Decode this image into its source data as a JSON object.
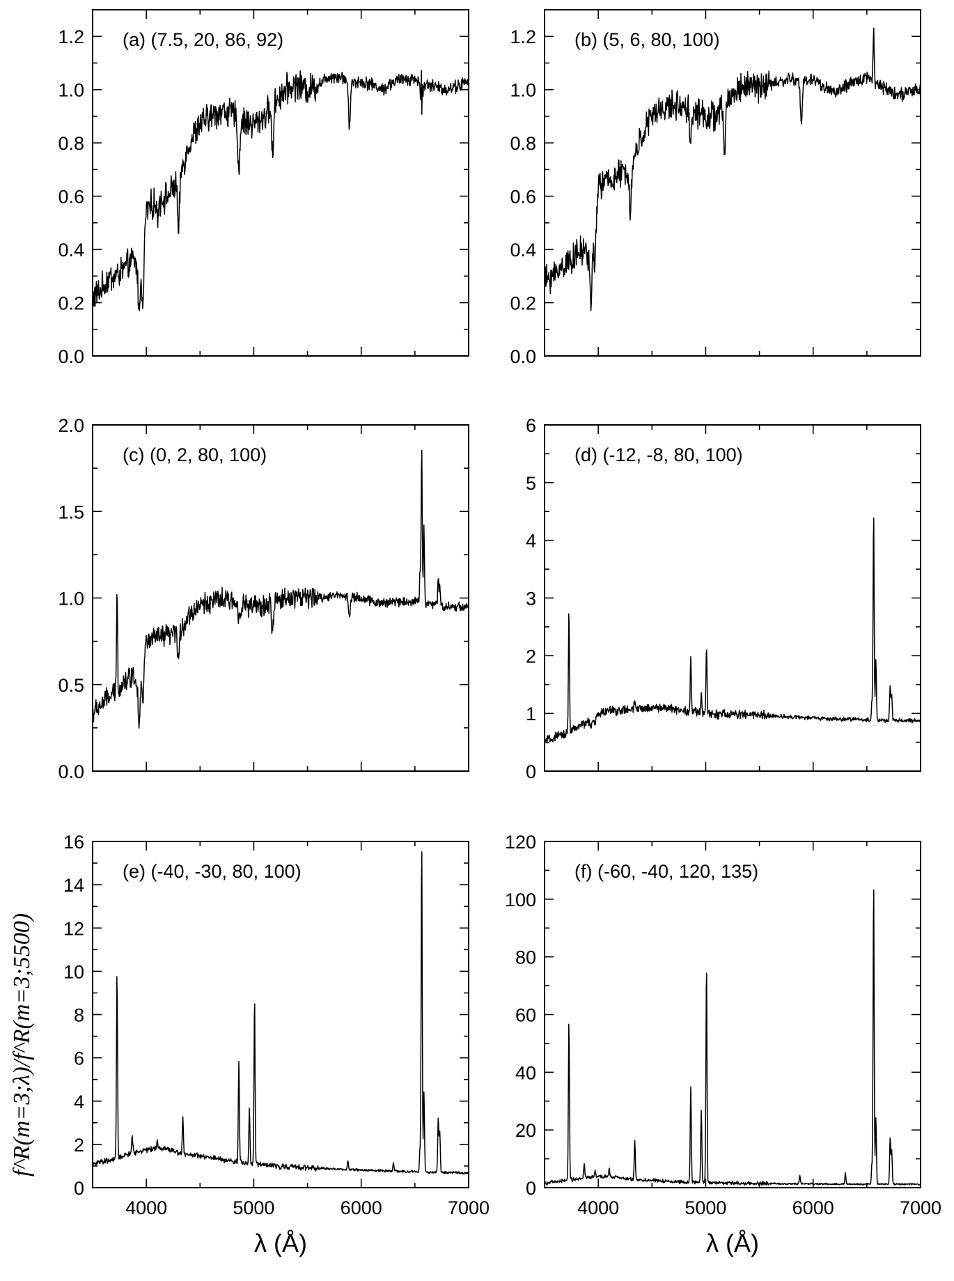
{
  "figure": {
    "xlabel": "λ (Å)",
    "ylabel": "f^R(m=3;λ)/f^R(m=3;5500)",
    "line_color": "#000000",
    "background": "#ffffff"
  },
  "chart_data": [
    {
      "id": "a",
      "type": "line",
      "label": "(a) (7.5, 20, 86, 92)",
      "xlim": [
        3500,
        7000
      ],
      "ylim": [
        0.0,
        1.3
      ],
      "xticks": [
        4000,
        5000,
        6000,
        7000
      ],
      "xticklabels": [
        "",
        "",
        "",
        ""
      ],
      "yticks": [
        0.0,
        0.2,
        0.4,
        0.6,
        0.8,
        1.0,
        1.2
      ],
      "yticklabels": [
        "0.0",
        "0.2",
        "0.4",
        "0.6",
        "0.8",
        "1.0",
        "1.2"
      ],
      "xlabel": "",
      "continuum": [
        [
          3500,
          0.22
        ],
        [
          3560,
          0.24
        ],
        [
          3650,
          0.29
        ],
        [
          3720,
          0.3
        ],
        [
          3800,
          0.33
        ],
        [
          3880,
          0.36
        ],
        [
          3920,
          0.33
        ],
        [
          3970,
          0.4
        ],
        [
          4000,
          0.55
        ],
        [
          4100,
          0.58
        ],
        [
          4200,
          0.6
        ],
        [
          4300,
          0.66
        ],
        [
          4400,
          0.8
        ],
        [
          4500,
          0.87
        ],
        [
          4600,
          0.9
        ],
        [
          4700,
          0.92
        ],
        [
          4800,
          0.91
        ],
        [
          4900,
          0.88
        ],
        [
          5000,
          0.87
        ],
        [
          5100,
          0.9
        ],
        [
          5200,
          0.96
        ],
        [
          5300,
          1.0
        ],
        [
          5400,
          1.02
        ],
        [
          5500,
          1.0
        ],
        [
          5600,
          1.02
        ],
        [
          5700,
          1.05
        ],
        [
          5800,
          1.05
        ],
        [
          5900,
          1.03
        ],
        [
          6000,
          1.03
        ],
        [
          6100,
          1.02
        ],
        [
          6200,
          1.0
        ],
        [
          6300,
          1.03
        ],
        [
          6400,
          1.04
        ],
        [
          6500,
          1.04
        ],
        [
          6600,
          1.02
        ],
        [
          6800,
          1.0
        ],
        [
          7000,
          1.03
        ]
      ],
      "noise_amp": 0.035,
      "lines": [
        [
          3934,
          -0.18
        ],
        [
          3968,
          -0.22
        ],
        [
          4102,
          -0.06
        ],
        [
          4300,
          -0.2
        ],
        [
          4861,
          -0.2
        ],
        [
          5175,
          -0.2
        ],
        [
          5890,
          -0.17
        ],
        [
          6563,
          0.16
        ],
        [
          6563,
          -0.12
        ]
      ]
    },
    {
      "id": "b",
      "type": "line",
      "label": "(b) (5, 6, 80, 100)",
      "xlim": [
        3500,
        7000
      ],
      "ylim": [
        0.0,
        1.3
      ],
      "xticks": [
        4000,
        5000,
        6000,
        7000
      ],
      "xticklabels": [
        "",
        "",
        "",
        ""
      ],
      "yticks": [
        0.0,
        0.2,
        0.4,
        0.6,
        0.8,
        1.0,
        1.2
      ],
      "yticklabels": [
        "0.0",
        "0.2",
        "0.4",
        "0.6",
        "0.8",
        "1.0",
        "1.2"
      ],
      "xlabel": "",
      "continuum": [
        [
          3500,
          0.28
        ],
        [
          3600,
          0.31
        ],
        [
          3700,
          0.35
        ],
        [
          3800,
          0.38
        ],
        [
          3880,
          0.4
        ],
        [
          3920,
          0.36
        ],
        [
          3970,
          0.5
        ],
        [
          4000,
          0.64
        ],
        [
          4100,
          0.66
        ],
        [
          4200,
          0.68
        ],
        [
          4300,
          0.7
        ],
        [
          4400,
          0.82
        ],
        [
          4500,
          0.9
        ],
        [
          4600,
          0.93
        ],
        [
          4700,
          0.94
        ],
        [
          4800,
          0.94
        ],
        [
          4900,
          0.92
        ],
        [
          5000,
          0.9
        ],
        [
          5100,
          0.9
        ],
        [
          5200,
          0.96
        ],
        [
          5300,
          1.0
        ],
        [
          5400,
          1.02
        ],
        [
          5500,
          1.01
        ],
        [
          5600,
          1.02
        ],
        [
          5700,
          1.03
        ],
        [
          5800,
          1.04
        ],
        [
          5900,
          1.03
        ],
        [
          6000,
          1.04
        ],
        [
          6100,
          1.01
        ],
        [
          6200,
          0.99
        ],
        [
          6300,
          1.01
        ],
        [
          6400,
          1.03
        ],
        [
          6500,
          1.05
        ],
        [
          6600,
          1.02
        ],
        [
          6800,
          0.98
        ],
        [
          7000,
          1.0
        ]
      ],
      "noise_amp": 0.035,
      "lines": [
        [
          3934,
          -0.2
        ],
        [
          3968,
          -0.18
        ],
        [
          4300,
          -0.16
        ],
        [
          4861,
          -0.13
        ],
        [
          5175,
          -0.18
        ],
        [
          5890,
          -0.16
        ],
        [
          6563,
          0.2
        ]
      ]
    },
    {
      "id": "c",
      "type": "line",
      "label": "(c) (0, 2, 80, 100)",
      "xlim": [
        3500,
        7000
      ],
      "ylim": [
        0.0,
        2.0
      ],
      "xticks": [
        4000,
        5000,
        6000,
        7000
      ],
      "xticklabels": [
        "",
        "",
        "",
        ""
      ],
      "yticks": [
        0.0,
        0.5,
        1.0,
        1.5,
        2.0
      ],
      "yticklabels": [
        "0.0",
        "0.5",
        "1.0",
        "1.5",
        "2.0"
      ],
      "xlabel": "",
      "continuum": [
        [
          3500,
          0.33
        ],
        [
          3600,
          0.4
        ],
        [
          3700,
          0.45
        ],
        [
          3800,
          0.52
        ],
        [
          3880,
          0.56
        ],
        [
          3920,
          0.5
        ],
        [
          3970,
          0.65
        ],
        [
          4000,
          0.75
        ],
        [
          4100,
          0.77
        ],
        [
          4200,
          0.78
        ],
        [
          4300,
          0.8
        ],
        [
          4400,
          0.9
        ],
        [
          4500,
          0.96
        ],
        [
          4600,
          0.98
        ],
        [
          4700,
          0.99
        ],
        [
          4800,
          0.98
        ],
        [
          4900,
          0.96
        ],
        [
          5000,
          0.95
        ],
        [
          5100,
          0.95
        ],
        [
          5200,
          0.98
        ],
        [
          5300,
          1.0
        ],
        [
          5400,
          1.01
        ],
        [
          5500,
          1.0
        ],
        [
          5600,
          1.0
        ],
        [
          5700,
          1.01
        ],
        [
          5800,
          1.02
        ],
        [
          5900,
          1.01
        ],
        [
          6000,
          1.0
        ],
        [
          6100,
          0.98
        ],
        [
          6200,
          0.97
        ],
        [
          6300,
          0.98
        ],
        [
          6400,
          0.98
        ],
        [
          6500,
          0.98
        ],
        [
          6600,
          0.97
        ],
        [
          6800,
          0.95
        ],
        [
          7000,
          0.95
        ]
      ],
      "noise_amp": 0.04,
      "lines": [
        [
          3727,
          0.55
        ],
        [
          3934,
          -0.25
        ],
        [
          3968,
          -0.25
        ],
        [
          4300,
          -0.15
        ],
        [
          4861,
          -0.06
        ],
        [
          5175,
          -0.16
        ],
        [
          5890,
          -0.12
        ],
        [
          6548,
          0.18
        ],
        [
          6563,
          0.88
        ],
        [
          6584,
          0.45
        ],
        [
          6717,
          0.15
        ],
        [
          6731,
          0.12
        ]
      ]
    },
    {
      "id": "d",
      "type": "line",
      "label": "(d) (-12, -8, 80, 100)",
      "xlim": [
        3500,
        7000
      ],
      "ylim": [
        0,
        6
      ],
      "xticks": [
        4000,
        5000,
        6000,
        7000
      ],
      "xticklabels": [
        "",
        "",
        "",
        ""
      ],
      "yticks": [
        0,
        1,
        2,
        3,
        4,
        5,
        6
      ],
      "yticklabels": [
        "0",
        "1",
        "2",
        "3",
        "4",
        "5",
        "6"
      ],
      "xlabel": "",
      "continuum": [
        [
          3500,
          0.52
        ],
        [
          3600,
          0.58
        ],
        [
          3700,
          0.65
        ],
        [
          3800,
          0.75
        ],
        [
          3900,
          0.85
        ],
        [
          4000,
          1.0
        ],
        [
          4100,
          1.05
        ],
        [
          4200,
          1.05
        ],
        [
          4300,
          1.06
        ],
        [
          4400,
          1.08
        ],
        [
          4500,
          1.1
        ],
        [
          4600,
          1.1
        ],
        [
          4700,
          1.08
        ],
        [
          4800,
          1.05
        ],
        [
          4900,
          1.02
        ],
        [
          5000,
          1.0
        ],
        [
          5200,
          0.98
        ],
        [
          5400,
          0.98
        ],
        [
          5600,
          0.96
        ],
        [
          5800,
          0.94
        ],
        [
          6000,
          0.92
        ],
        [
          6200,
          0.9
        ],
        [
          6400,
          0.9
        ],
        [
          6600,
          0.88
        ],
        [
          7000,
          0.87
        ]
      ],
      "noise_amp": 0.05,
      "lines": [
        [
          3727,
          2.05
        ],
        [
          3934,
          -0.15
        ],
        [
          3968,
          -0.15
        ],
        [
          4340,
          0.15
        ],
        [
          4861,
          0.95
        ],
        [
          4959,
          0.35
        ],
        [
          5007,
          1.1
        ],
        [
          6548,
          0.35
        ],
        [
          6563,
          3.5
        ],
        [
          6584,
          1.05
        ],
        [
          6717,
          0.6
        ],
        [
          6731,
          0.45
        ]
      ]
    },
    {
      "id": "e",
      "type": "line",
      "label": "(e) (-40, -30, 80, 100)",
      "xlim": [
        3500,
        7000
      ],
      "ylim": [
        0,
        16
      ],
      "xticks": [
        4000,
        5000,
        6000,
        7000
      ],
      "xticklabels": [
        "4000",
        "5000",
        "6000",
        "7000"
      ],
      "yticks": [
        0,
        2,
        4,
        6,
        8,
        10,
        12,
        14,
        16
      ],
      "yticklabels": [
        "0",
        "2",
        "4",
        "6",
        "8",
        "10",
        "12",
        "14",
        "16"
      ],
      "xlabel": "λ (Å)",
      "continuum": [
        [
          3500,
          1.1
        ],
        [
          3600,
          1.2
        ],
        [
          3700,
          1.3
        ],
        [
          3800,
          1.5
        ],
        [
          3900,
          1.65
        ],
        [
          4000,
          1.75
        ],
        [
          4100,
          1.82
        ],
        [
          4200,
          1.8
        ],
        [
          4300,
          1.62
        ],
        [
          4400,
          1.52
        ],
        [
          4600,
          1.38
        ],
        [
          4800,
          1.22
        ],
        [
          5000,
          1.1
        ],
        [
          5200,
          1.0
        ],
        [
          5400,
          0.95
        ],
        [
          5600,
          0.9
        ],
        [
          5800,
          0.85
        ],
        [
          6000,
          0.82
        ],
        [
          6200,
          0.78
        ],
        [
          6400,
          0.75
        ],
        [
          6600,
          0.72
        ],
        [
          6800,
          0.7
        ],
        [
          7000,
          0.68
        ]
      ],
      "noise_amp": 0.08,
      "lines": [
        [
          3727,
          8.4
        ],
        [
          3869,
          0.8
        ],
        [
          4102,
          0.4
        ],
        [
          4340,
          1.7
        ],
        [
          4861,
          4.65
        ],
        [
          4959,
          2.55
        ],
        [
          5007,
          7.4
        ],
        [
          5876,
          0.4
        ],
        [
          6300,
          0.4
        ],
        [
          6548,
          1.2
        ],
        [
          6563,
          14.8
        ],
        [
          6584,
          3.7
        ],
        [
          6717,
          2.5
        ],
        [
          6731,
          1.9
        ]
      ]
    },
    {
      "id": "f",
      "type": "line",
      "label": "(f) (-60, -40, 120, 135)",
      "xlim": [
        3500,
        7000
      ],
      "ylim": [
        0,
        120
      ],
      "xticks": [
        4000,
        5000,
        6000,
        7000
      ],
      "xticklabels": [
        "4000",
        "5000",
        "6000",
        "7000"
      ],
      "yticks": [
        0,
        20,
        40,
        60,
        80,
        100,
        120
      ],
      "yticklabels": [
        "0",
        "20",
        "40",
        "60",
        "80",
        "100",
        "120"
      ],
      "xlabel": "λ (Å)",
      "continuum": [
        [
          3500,
          1.5
        ],
        [
          3600,
          2.0
        ],
        [
          3700,
          2.5
        ],
        [
          3800,
          3.0
        ],
        [
          3900,
          3.5
        ],
        [
          4000,
          3.7
        ],
        [
          4100,
          3.8
        ],
        [
          4200,
          3.4
        ],
        [
          4300,
          3.0
        ],
        [
          4400,
          2.7
        ],
        [
          4600,
          2.3
        ],
        [
          4800,
          2.0
        ],
        [
          5000,
          1.8
        ],
        [
          5200,
          1.6
        ],
        [
          5400,
          1.5
        ],
        [
          5600,
          1.4
        ],
        [
          5800,
          1.35
        ],
        [
          6000,
          1.3
        ],
        [
          6200,
          1.25
        ],
        [
          6400,
          1.2
        ],
        [
          6600,
          1.2
        ],
        [
          7000,
          1.2
        ]
      ],
      "noise_amp": 0.4,
      "lines": [
        [
          3727,
          54.0
        ],
        [
          3869,
          5.0
        ],
        [
          3970,
          2.5
        ],
        [
          4102,
          3.0
        ],
        [
          4340,
          13.5
        ],
        [
          4861,
          33.0
        ],
        [
          4959,
          25.0
        ],
        [
          5007,
          72.5
        ],
        [
          5876,
          3.0
        ],
        [
          6300,
          4.0
        ],
        [
          6548,
          7.5
        ],
        [
          6563,
          102.0
        ],
        [
          6584,
          23.0
        ],
        [
          6717,
          16.0
        ],
        [
          6731,
          12.0
        ]
      ]
    }
  ]
}
